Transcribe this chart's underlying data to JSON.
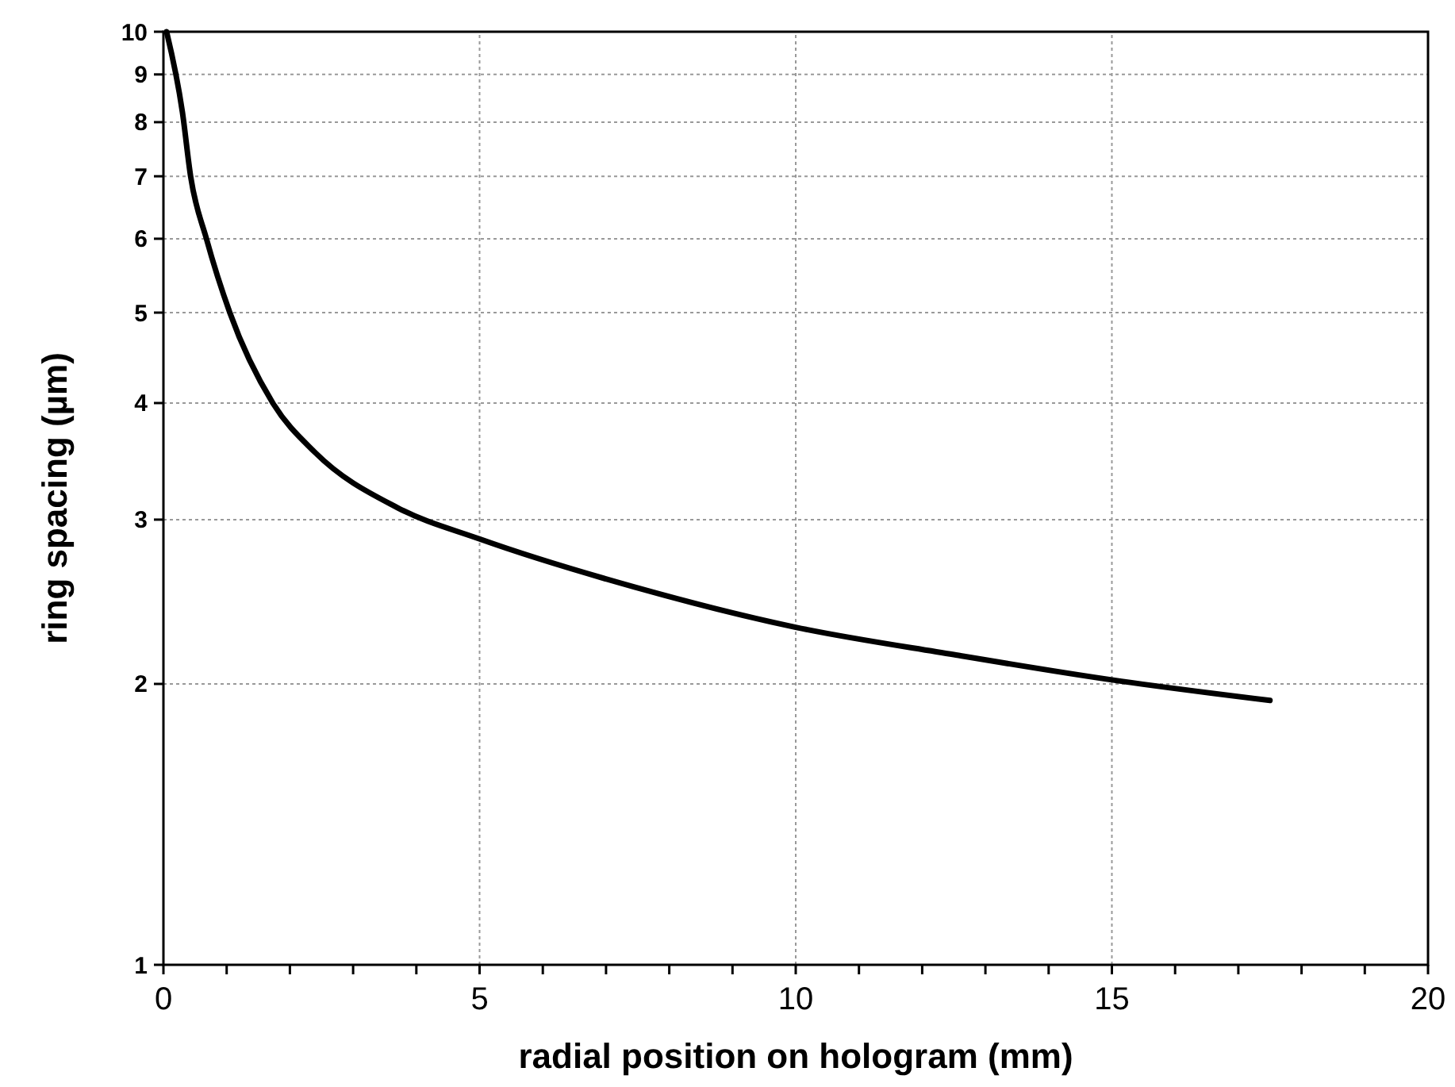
{
  "chart_data": {
    "type": "line",
    "xlabel": "radial position on hologram (mm)",
    "ylabel": "ring spacing (µm)",
    "log": "y",
    "grid": true,
    "marker": "none",
    "line_style": "solid",
    "xlim": [
      0,
      20
    ],
    "ylim": [
      1,
      10
    ],
    "xticks": [
      0,
      {
        "value": 1,
        "label": null
      },
      {
        "value": 2,
        "label": null
      },
      {
        "value": 3,
        "label": null
      },
      {
        "value": 4,
        "label": null
      },
      5,
      {
        "value": 6,
        "label": null
      },
      {
        "value": 7,
        "label": null
      },
      {
        "value": 8,
        "label": null
      },
      {
        "value": 9,
        "label": null
      },
      10,
      {
        "value": 11,
        "label": null
      },
      {
        "value": 12,
        "label": null
      },
      {
        "value": 13,
        "label": null
      },
      {
        "value": 14,
        "label": null
      },
      15,
      {
        "value": 16,
        "label": null
      },
      {
        "value": 17,
        "label": null
      },
      {
        "value": 18,
        "label": null
      },
      {
        "value": 19,
        "label": null
      },
      20
    ],
    "yticks": [
      1,
      2,
      3,
      4,
      5,
      6,
      7,
      8,
      9,
      10
    ],
    "series": [
      {
        "color": "#000000",
        "x": [
          0.05,
          0.3,
          0.43,
          0.68,
          1.05,
          1.73,
          2.4,
          3.7,
          5,
          7.45,
          10,
          12.5,
          15,
          17.5
        ],
        "values": [
          10,
          8.2,
          7.0,
          6.0,
          5.0,
          4.0,
          3.54,
          3.09,
          2.86,
          2.54,
          2.3,
          2.15,
          2.02,
          1.92
        ]
      }
    ]
  }
}
